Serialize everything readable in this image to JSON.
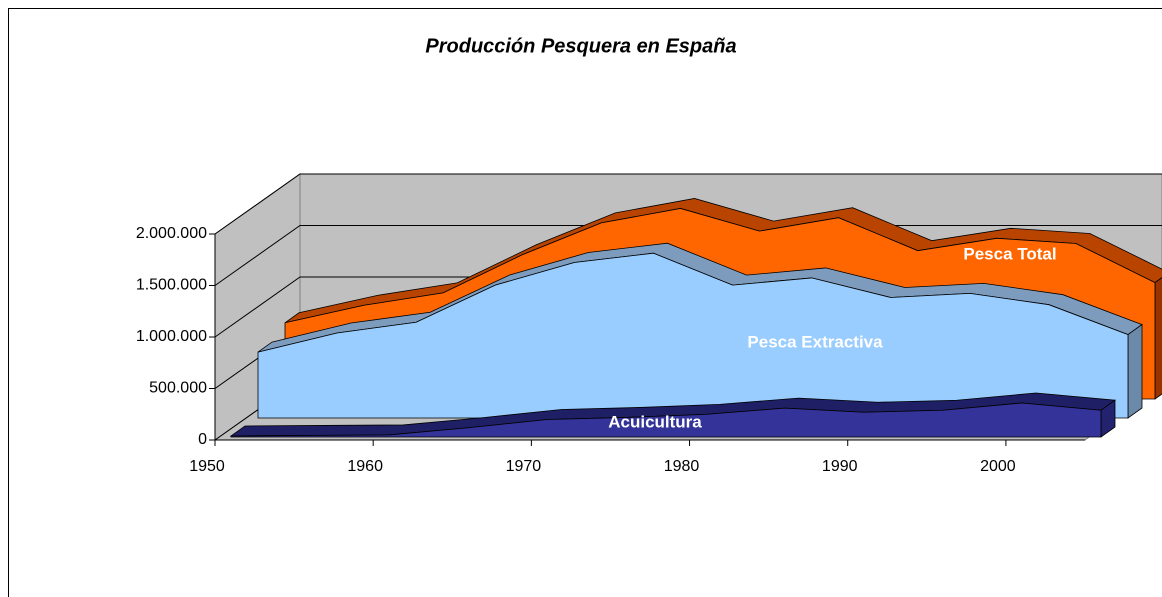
{
  "chart_data": {
    "type": "area3d",
    "title": "Producción Pesquera en España",
    "x": [
      1950,
      1955,
      1960,
      1965,
      1970,
      1975,
      1980,
      1985,
      1990,
      1995,
      2000,
      2005
    ],
    "series": [
      {
        "name": "Acuicultura",
        "color": "#333399",
        "values": [
          10000,
          15000,
          20000,
          90000,
          170000,
          190000,
          220000,
          280000,
          240000,
          260000,
          330000,
          260000
        ]
      },
      {
        "name": "Pesca Extractiva",
        "color": "#99ccff",
        "values": [
          640000,
          825000,
          930000,
          1290000,
          1510000,
          1600000,
          1290000,
          1360000,
          1170000,
          1210000,
          1100000,
          810000
        ]
      },
      {
        "name": "Pesca Total",
        "color": "#ff6600",
        "values": [
          740000,
          910000,
          1030000,
          1400000,
          1710000,
          1850000,
          1630000,
          1760000,
          1440000,
          1560000,
          1510000,
          1130000
        ]
      }
    ],
    "xlim": [
      1950,
      2005
    ],
    "xticks": [
      1950,
      1960,
      1970,
      1980,
      1990,
      2000
    ],
    "ylim": [
      0,
      2000000
    ],
    "yticks": [
      0,
      {
        "value": 500000,
        "label": "500.000"
      },
      {
        "value": 1000000,
        "label": "1.000.000"
      },
      {
        "value": 1500000,
        "label": "1.500.000"
      },
      {
        "value": 2000000,
        "label": "2.000.000"
      }
    ],
    "grid": true
  }
}
